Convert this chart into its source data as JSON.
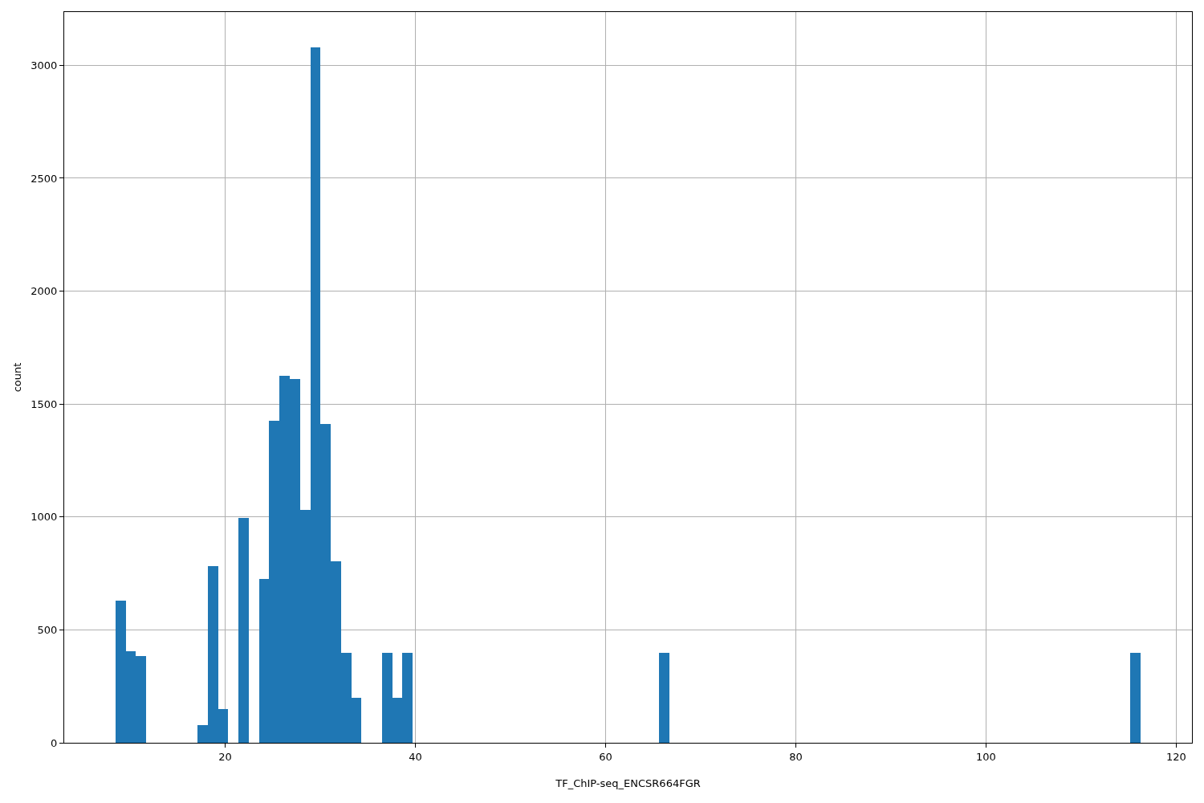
{
  "chart_data": {
    "type": "histogram",
    "xlabel": "TF_ChIP-seq_ENCSR664FGR",
    "ylabel": "count",
    "color": "#1f77b4",
    "bins": [
      8.46,
      9.54,
      10.62,
      11.69,
      12.77,
      13.85,
      14.93,
      16.01,
      17.08,
      18.16,
      19.24,
      20.32,
      21.4,
      22.47,
      23.55,
      24.63,
      25.71,
      26.79,
      27.86,
      28.94,
      30.02,
      31.1,
      32.18,
      33.25,
      34.33,
      35.41,
      36.49,
      37.57,
      38.64,
      39.72,
      40.8,
      41.88,
      42.96,
      44.03,
      45.11,
      46.19,
      47.27,
      48.35,
      49.42,
      50.5,
      51.58,
      52.66,
      53.74,
      54.81,
      55.89,
      56.97,
      58.05,
      59.13,
      60.2,
      61.28,
      62.36,
      63.44,
      64.52,
      65.59,
      66.67,
      67.75,
      68.83,
      69.91,
      70.98,
      72.06,
      73.14,
      74.22,
      75.3,
      76.37,
      77.45,
      78.53,
      79.61,
      80.69,
      81.76,
      82.84,
      83.92,
      85.0,
      86.08,
      87.15,
      88.23,
      89.31,
      90.39,
      91.47,
      92.54,
      93.62,
      94.7,
      95.78,
      96.86,
      97.93,
      99.01,
      100.09,
      101.17,
      102.25,
      103.32,
      104.4,
      105.48,
      106.56,
      107.64,
      108.71,
      109.79,
      110.87,
      111.95,
      113.03,
      114.1,
      115.18,
      116.26
    ],
    "values": [
      630,
      405,
      385,
      0,
      0,
      0,
      0,
      0,
      78,
      782,
      150,
      0,
      995,
      0,
      725,
      1425,
      1625,
      1611,
      1032,
      3081,
      1412,
      805,
      400,
      200,
      0,
      0,
      400,
      200,
      400,
      0,
      0,
      0,
      0,
      0,
      0,
      0,
      0,
      0,
      0,
      0,
      0,
      0,
      0,
      0,
      0,
      0,
      0,
      0,
      0,
      0,
      0,
      0,
      0,
      400,
      0,
      0,
      0,
      0,
      0,
      0,
      0,
      0,
      0,
      0,
      0,
      0,
      0,
      0,
      0,
      0,
      0,
      0,
      0,
      0,
      0,
      0,
      0,
      0,
      0,
      0,
      0,
      0,
      0,
      0,
      0,
      0,
      0,
      0,
      0,
      0,
      0,
      0,
      0,
      0,
      0,
      0,
      0,
      0,
      0,
      400
    ],
    "xlim": [
      3.07,
      121.65
    ],
    "ylim": [
      0,
      3236
    ],
    "xticks": [
      20,
      40,
      60,
      80,
      100,
      120
    ],
    "yticks": [
      0,
      500,
      1000,
      1500,
      2000,
      2500,
      3000
    ],
    "grid": true
  }
}
